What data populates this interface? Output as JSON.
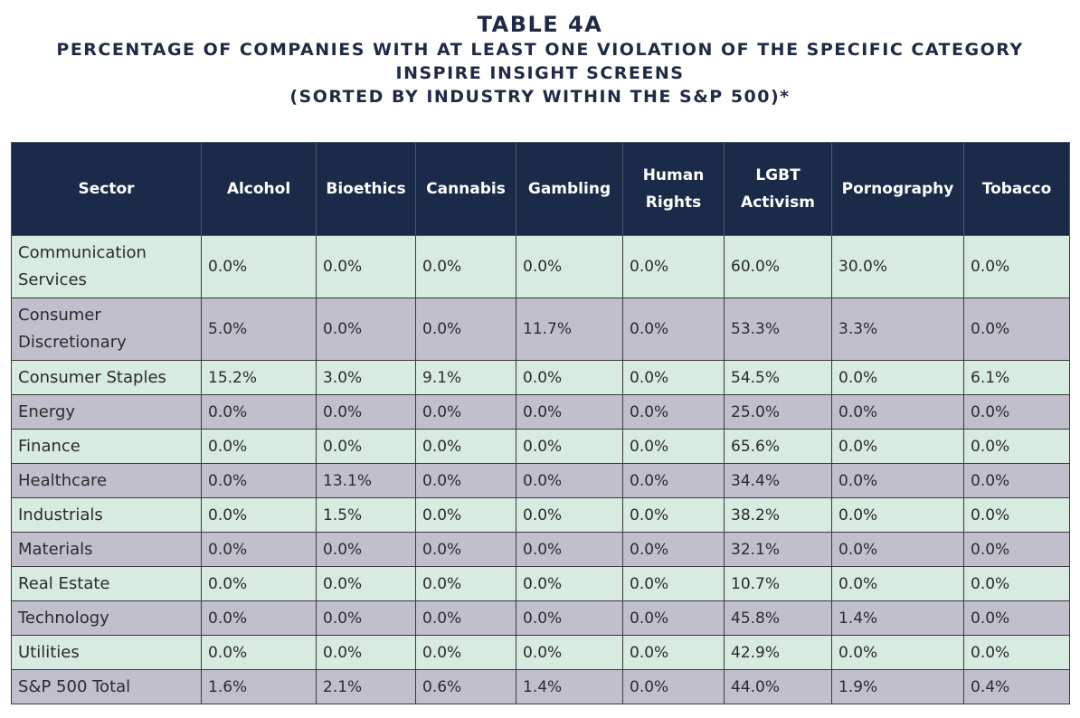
{
  "title": {
    "main": "TABLE 4A",
    "line1": "PERCENTAGE OF COMPANIES WITH AT LEAST ONE VIOLATION OF THE SPECIFIC CATEGORY",
    "line2": "INSPIRE INSIGHT SCREENS",
    "line3": "(SORTED BY INDUSTRY WITHIN THE S&P 500)*"
  },
  "table": {
    "headers": [
      "Sector",
      "Alcohol",
      "Bioethics",
      "Cannabis",
      "Gambling",
      "Human Rights",
      "LGBT Activism",
      "Pornography",
      "Tobacco"
    ],
    "header_lines": [
      [
        "Sector"
      ],
      [
        "Alcohol"
      ],
      [
        "Bioethics"
      ],
      [
        "Cannabis"
      ],
      [
        "Gambling"
      ],
      [
        "Human",
        "Rights"
      ],
      [
        "LGBT",
        "Activism"
      ],
      [
        "Pornography"
      ],
      [
        "Tobacco"
      ]
    ],
    "rows": [
      {
        "sector": "Communication Services",
        "values": [
          "0.0%",
          "0.0%",
          "0.0%",
          "0.0%",
          "0.0%",
          "60.0%",
          "30.0%",
          "0.0%"
        ]
      },
      {
        "sector": "Consumer Discretionary",
        "values": [
          "5.0%",
          "0.0%",
          "0.0%",
          "11.7%",
          "0.0%",
          "53.3%",
          "3.3%",
          "0.0%"
        ]
      },
      {
        "sector": "Consumer Staples",
        "values": [
          "15.2%",
          "3.0%",
          "9.1%",
          "0.0%",
          "0.0%",
          "54.5%",
          "0.0%",
          "6.1%"
        ]
      },
      {
        "sector": "Energy",
        "values": [
          "0.0%",
          "0.0%",
          "0.0%",
          "0.0%",
          "0.0%",
          "25.0%",
          "0.0%",
          "0.0%"
        ]
      },
      {
        "sector": "Finance",
        "values": [
          "0.0%",
          "0.0%",
          "0.0%",
          "0.0%",
          "0.0%",
          "65.6%",
          "0.0%",
          "0.0%"
        ]
      },
      {
        "sector": "Healthcare",
        "values": [
          "0.0%",
          "13.1%",
          "0.0%",
          "0.0%",
          "0.0%",
          "34.4%",
          "0.0%",
          "0.0%"
        ]
      },
      {
        "sector": "Industrials",
        "values": [
          "0.0%",
          "1.5%",
          "0.0%",
          "0.0%",
          "0.0%",
          "38.2%",
          "0.0%",
          "0.0%"
        ]
      },
      {
        "sector": "Materials",
        "values": [
          "0.0%",
          "0.0%",
          "0.0%",
          "0.0%",
          "0.0%",
          "32.1%",
          "0.0%",
          "0.0%"
        ]
      },
      {
        "sector": "Real Estate",
        "values": [
          "0.0%",
          "0.0%",
          "0.0%",
          "0.0%",
          "0.0%",
          "10.7%",
          "0.0%",
          "0.0%"
        ]
      },
      {
        "sector": "Technology",
        "values": [
          "0.0%",
          "0.0%",
          "0.0%",
          "0.0%",
          "0.0%",
          "45.8%",
          "1.4%",
          "0.0%"
        ]
      },
      {
        "sector": "Utilities",
        "values": [
          "0.0%",
          "0.0%",
          "0.0%",
          "0.0%",
          "0.0%",
          "42.9%",
          "0.0%",
          "0.0%"
        ]
      },
      {
        "sector": "S&P 500 Total",
        "values": [
          "1.6%",
          "2.1%",
          "0.6%",
          "1.4%",
          "0.0%",
          "44.0%",
          "1.9%",
          "0.4%"
        ]
      }
    ],
    "colors": {
      "header_bg": "#1b2a48",
      "header_text": "#ffffff",
      "row_alt_a": "#d8ebe0",
      "row_alt_b": "#c2bfcc",
      "title_text": "#1f2a44"
    }
  }
}
